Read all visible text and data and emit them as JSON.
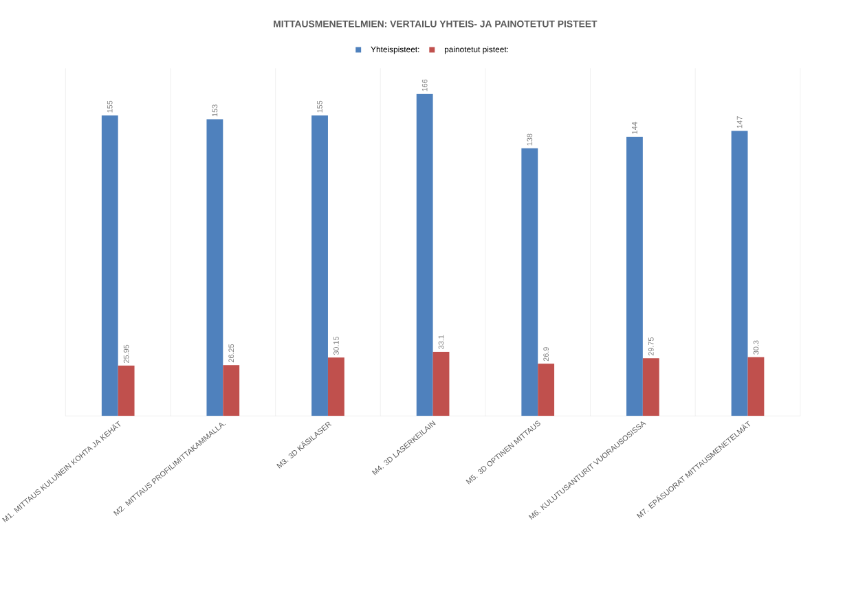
{
  "chart_data": {
    "type": "bar",
    "title": "MITTAUSMENETELMIEN: VERTAILU YHTEIS- JA PAINOTETUT PISTEET",
    "categories": [
      "M1. MITTAUS KULUNEIN KOHTA JA KEHÄT",
      "M2.  MITTAUS PROFILIMITTAKAMMALLA.",
      "M3. 3D KÄSILASER",
      "M4. 3D LASERKEILAIN",
      "M5. 3D OPTINEN MITTAUS",
      "M6. KULUTUSANTURIT VUORAUSOSISSA",
      "M7. EPÄSUORAT MITTAUSMENETELMÄT"
    ],
    "series": [
      {
        "name": "Yhteispisteet:",
        "color": "#4f81bd",
        "values": [
          155,
          153,
          155,
          166,
          138,
          144,
          147
        ]
      },
      {
        "name": "painotetut pisteet:",
        "color": "#c0504d",
        "values": [
          25.95,
          26.25,
          30.15,
          33.1,
          26.9,
          29.75,
          30.3
        ]
      }
    ],
    "data_labels": true,
    "legend": "top",
    "grid": "x"
  }
}
